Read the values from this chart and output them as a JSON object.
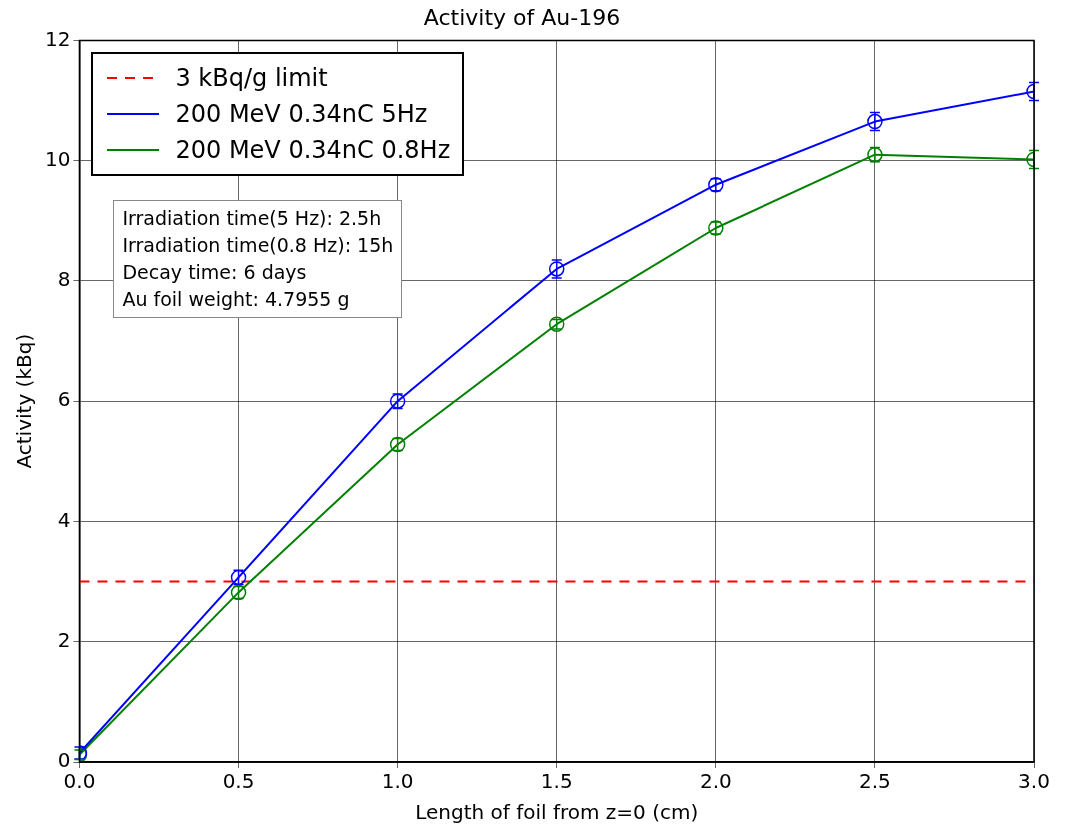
{
  "chart_data": {
    "type": "line",
    "title": "Activity of Au-196",
    "xlabel": "Length of foil from z=0 (cm)",
    "ylabel": "Activity (kBq)",
    "x": [
      0,
      0.5,
      1,
      1.5,
      2,
      2.5,
      3
    ],
    "series": [
      {
        "name": "200 MeV 0.34nC 5Hz",
        "color": "#0000ff",
        "values": [
          0.15,
          3.07,
          6.0,
          8.2,
          9.6,
          10.65,
          11.15
        ],
        "errors": [
          0.1,
          0.12,
          0.12,
          0.15,
          0.1,
          0.15,
          0.15
        ]
      },
      {
        "name": "200 MeV 0.34nC 0.8Hz",
        "color": "#008000",
        "values": [
          0.12,
          2.82,
          5.28,
          7.28,
          8.88,
          10.1,
          10.02
        ],
        "errors": [
          0.08,
          0.1,
          0.1,
          0.08,
          0.1,
          0.12,
          0.15
        ]
      }
    ],
    "ref_lines": [
      {
        "axis": "y",
        "value": 3,
        "label": "3 kBq/g limit",
        "color": "#ff0000",
        "line_style": "dashed"
      }
    ],
    "annotations": [
      "Irradiation time(5 Hz): 2.5h",
      "Irradiation time(0.8 Hz): 15h",
      "Decay time: 6 days",
      "Au foil weight: 4.7955 g"
    ],
    "xlim": [
      0,
      3
    ],
    "xticks": [
      {
        "value": 0,
        "label": "0.0"
      },
      {
        "value": 0.5,
        "label": "0.5"
      },
      {
        "value": 1,
        "label": "1.0"
      },
      {
        "value": 1.5,
        "label": "1.5"
      },
      {
        "value": 2,
        "label": "2.0"
      },
      {
        "value": 2.5,
        "label": "2.5"
      },
      {
        "value": 3,
        "label": "3.0"
      }
    ],
    "ylim": [
      0,
      12
    ],
    "yticks": [
      0,
      2,
      4,
      6,
      8,
      10,
      12
    ],
    "grid": true,
    "legend": "top left",
    "marker": "circle",
    "line_style": "solid"
  }
}
